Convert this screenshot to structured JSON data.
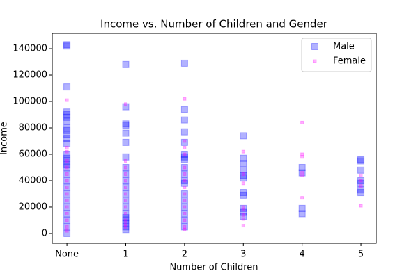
{
  "chart_data": {
    "type": "scatter",
    "title": "Income vs. Number of Children and Gender",
    "xlabel": "Number of Children",
    "ylabel": "Income",
    "xlim": [
      -0.25,
      5.26
    ],
    "ylim": [
      -7400,
      151600
    ],
    "xticks": [
      {
        "value": 0,
        "label": "None"
      },
      1,
      2,
      3,
      4,
      5
    ],
    "yticks": [
      0,
      20000,
      40000,
      60000,
      80000,
      100000,
      120000,
      140000
    ],
    "legend": "upper right",
    "series": [
      {
        "name": "Male",
        "color": "#0000ff",
        "marker_size": 9,
        "x": [
          0,
          0,
          0,
          0,
          0,
          0,
          0,
          0,
          0,
          0,
          0,
          0,
          0,
          0,
          0,
          0,
          0,
          0,
          0,
          0,
          0,
          0,
          0,
          0,
          0,
          0,
          0,
          1,
          1,
          1,
          1,
          1,
          1,
          1,
          1,
          1,
          1,
          1,
          1,
          1,
          1,
          1,
          1,
          1,
          1,
          1,
          1,
          2,
          2,
          2,
          2,
          2,
          2,
          2,
          2,
          2,
          2,
          2,
          2,
          2,
          2,
          2,
          2,
          2,
          2,
          3,
          3,
          3,
          3,
          3,
          3,
          3,
          3,
          3,
          3,
          3,
          4,
          4,
          4,
          4,
          5,
          5,
          5,
          5,
          5,
          5,
          5
        ],
        "y": [
          143000,
          142000,
          111000,
          92000,
          90000,
          88000,
          85000,
          80000,
          78000,
          75000,
          72000,
          68000,
          60000,
          57000,
          55000,
          52000,
          50000,
          45000,
          40000,
          35000,
          30000,
          25000,
          20000,
          15000,
          10000,
          5000,
          0,
          128000,
          96000,
          83000,
          82000,
          76000,
          69000,
          58000,
          50000,
          45000,
          40000,
          35000,
          30000,
          25000,
          20000,
          15000,
          12000,
          10000,
          8000,
          5000,
          3000,
          129000,
          94000,
          86000,
          77000,
          69000,
          60000,
          58000,
          56000,
          50000,
          45000,
          40000,
          38000,
          30000,
          25000,
          20000,
          15000,
          10000,
          5000,
          74000,
          57000,
          53000,
          48000,
          44000,
          42000,
          31000,
          29000,
          19000,
          16000,
          13000,
          50000,
          46000,
          19000,
          15000,
          56000,
          55000,
          48000,
          40000,
          38000,
          33000,
          31000
        ]
      },
      {
        "name": "Female",
        "color": "#ff00ff",
        "marker_size": 4,
        "x": [
          0,
          0,
          0,
          0,
          0,
          0,
          0,
          0,
          0,
          0,
          0,
          0,
          0,
          0,
          0,
          1,
          1,
          1,
          1,
          1,
          1,
          1,
          1,
          1,
          1,
          1,
          1,
          1,
          2,
          2,
          2,
          2,
          2,
          2,
          2,
          2,
          2,
          2,
          2,
          2,
          2,
          2,
          2,
          3,
          3,
          3,
          3,
          3,
          3,
          3,
          3,
          4,
          4,
          4,
          4,
          4,
          4,
          5,
          5,
          5,
          5
        ],
        "y": [
          101000,
          65000,
          62000,
          55000,
          50000,
          45000,
          40000,
          35000,
          30000,
          25000,
          20000,
          15000,
          10000,
          5000,
          2000,
          98000,
          55000,
          50000,
          45000,
          40000,
          35000,
          30000,
          25000,
          20000,
          15000,
          10000,
          7000,
          5000,
          102000,
          70000,
          65000,
          60000,
          50000,
          45000,
          40000,
          35000,
          30000,
          25000,
          20000,
          15000,
          10000,
          5000,
          3000,
          62000,
          45000,
          38000,
          20000,
          18000,
          14000,
          11000,
          6000,
          84000,
          60000,
          58000,
          46000,
          44000,
          27000,
          44000,
          40000,
          36000,
          21000
        ]
      }
    ]
  }
}
